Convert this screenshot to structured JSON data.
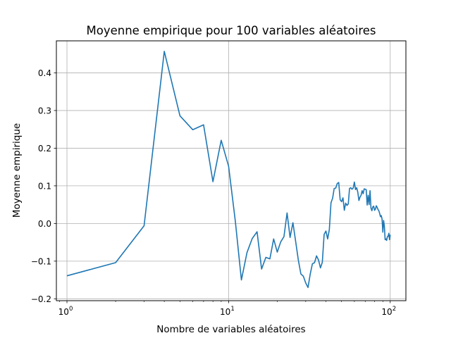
{
  "chart_data": {
    "type": "line",
    "title": "Moyenne empirique pour 100 variables aléatoires",
    "xlabel": "Nombre de variables aléatoires",
    "ylabel": "Moyenne empirique",
    "xscale": "log",
    "xlim": [
      0.86,
      125
    ],
    "ylim": [
      -0.205,
      0.485
    ],
    "grid": true,
    "line_color": "#1f77b4",
    "x_ticks": [
      {
        "value": 1,
        "label": "10",
        "exp": "0"
      },
      {
        "value": 10,
        "label": "10",
        "exp": "1"
      },
      {
        "value": 100,
        "label": "10",
        "exp": "2"
      }
    ],
    "y_ticks": [
      {
        "value": 0.4,
        "label": "0.4"
      },
      {
        "value": 0.3,
        "label": "0.3"
      },
      {
        "value": 0.2,
        "label": "0.2"
      },
      {
        "value": 0.1,
        "label": "0.1"
      },
      {
        "value": 0.0,
        "label": "0.0"
      },
      {
        "value": -0.1,
        "label": "−0.1"
      },
      {
        "value": -0.2,
        "label": "−0.2"
      }
    ],
    "series": [
      {
        "x": [
          1,
          2,
          3,
          4,
          5,
          6,
          7,
          8,
          9,
          10,
          11,
          12,
          13,
          14,
          15,
          16,
          17,
          18,
          19,
          20,
          21,
          22,
          23,
          24,
          25,
          26,
          27,
          28,
          29,
          30,
          31,
          32,
          33,
          34,
          35,
          36,
          37,
          38,
          39,
          40,
          41,
          42,
          43,
          44,
          45,
          46,
          47,
          48,
          49,
          50,
          51,
          52,
          53,
          54,
          55,
          56,
          57,
          58,
          59,
          60,
          61,
          62,
          63,
          64,
          65,
          66,
          67,
          68,
          69,
          70,
          71,
          72,
          73,
          74,
          75,
          76,
          77,
          78,
          79,
          80,
          81,
          82,
          83,
          84,
          85,
          86,
          87,
          88,
          89,
          90,
          91,
          92,
          93,
          94,
          95,
          96,
          97,
          98,
          99,
          100
        ],
        "y": [
          -0.139,
          -0.104,
          -0.006,
          0.457,
          0.286,
          0.249,
          0.262,
          0.111,
          0.221,
          0.152,
          0.007,
          -0.15,
          -0.077,
          -0.04,
          -0.022,
          -0.121,
          -0.09,
          -0.094,
          -0.041,
          -0.076,
          -0.049,
          -0.035,
          0.028,
          -0.037,
          0.002,
          -0.048,
          -0.097,
          -0.134,
          -0.14,
          -0.158,
          -0.17,
          -0.134,
          -0.107,
          -0.104,
          -0.086,
          -0.097,
          -0.118,
          -0.103,
          -0.029,
          -0.02,
          -0.041,
          -0.016,
          0.055,
          0.067,
          0.093,
          0.094,
          0.106,
          0.109,
          0.063,
          0.058,
          0.068,
          0.035,
          0.054,
          0.048,
          0.052,
          0.093,
          0.095,
          0.091,
          0.094,
          0.11,
          0.09,
          0.095,
          0.083,
          0.061,
          0.07,
          0.075,
          0.087,
          0.079,
          0.092,
          0.091,
          0.09,
          0.049,
          0.075,
          0.05,
          0.087,
          0.041,
          0.034,
          0.044,
          0.046,
          0.035,
          0.038,
          0.047,
          0.043,
          0.037,
          0.034,
          0.027,
          0.018,
          0.021,
          0.012,
          -0.023,
          0.008,
          -0.008,
          -0.043,
          -0.041,
          -0.045,
          -0.035,
          -0.034,
          -0.026,
          -0.043,
          -0.03
        ]
      }
    ]
  }
}
